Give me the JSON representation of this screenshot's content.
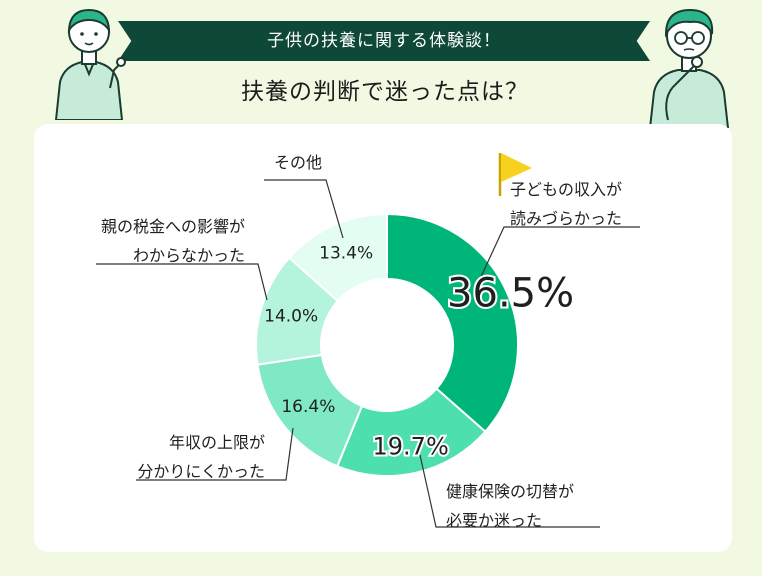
{
  "header": {
    "banner": "子供の扶養に関する体験談！",
    "question": "扶養の判断で迷った点は？"
  },
  "colors": {
    "background": "#f2f9e2",
    "banner": "#0e4838",
    "flag": "#f8d01e",
    "slices": [
      "#00b57a",
      "#4ddfad",
      "#7ee9c4",
      "#b4f4dd",
      "#e4fdf2"
    ]
  },
  "chart_data": {
    "type": "pie",
    "variant": "donut",
    "legend": "none",
    "categories": [
      "子どもの収入が読みづらかった",
      "健康保険の切替が必要か迷った",
      "年収の上限が分かりにくかった",
      "親の税金への影響がわからなかった",
      "その他"
    ],
    "values": [
      36.5,
      19.7,
      16.4,
      14.0,
      13.4
    ],
    "value_labels": [
      "36.5%",
      "19.7%",
      "16.4%",
      "14.0%",
      "13.4%"
    ],
    "category_lines": [
      [
        "子どもの収入が",
        "読みづらかった"
      ],
      [
        "健康保険の切替が",
        "必要か迷った"
      ],
      [
        "年収の上限が",
        "分かりにくかった"
      ],
      [
        "親の税金への影響が",
        "わからなかった"
      ],
      [
        "その他"
      ]
    ]
  }
}
